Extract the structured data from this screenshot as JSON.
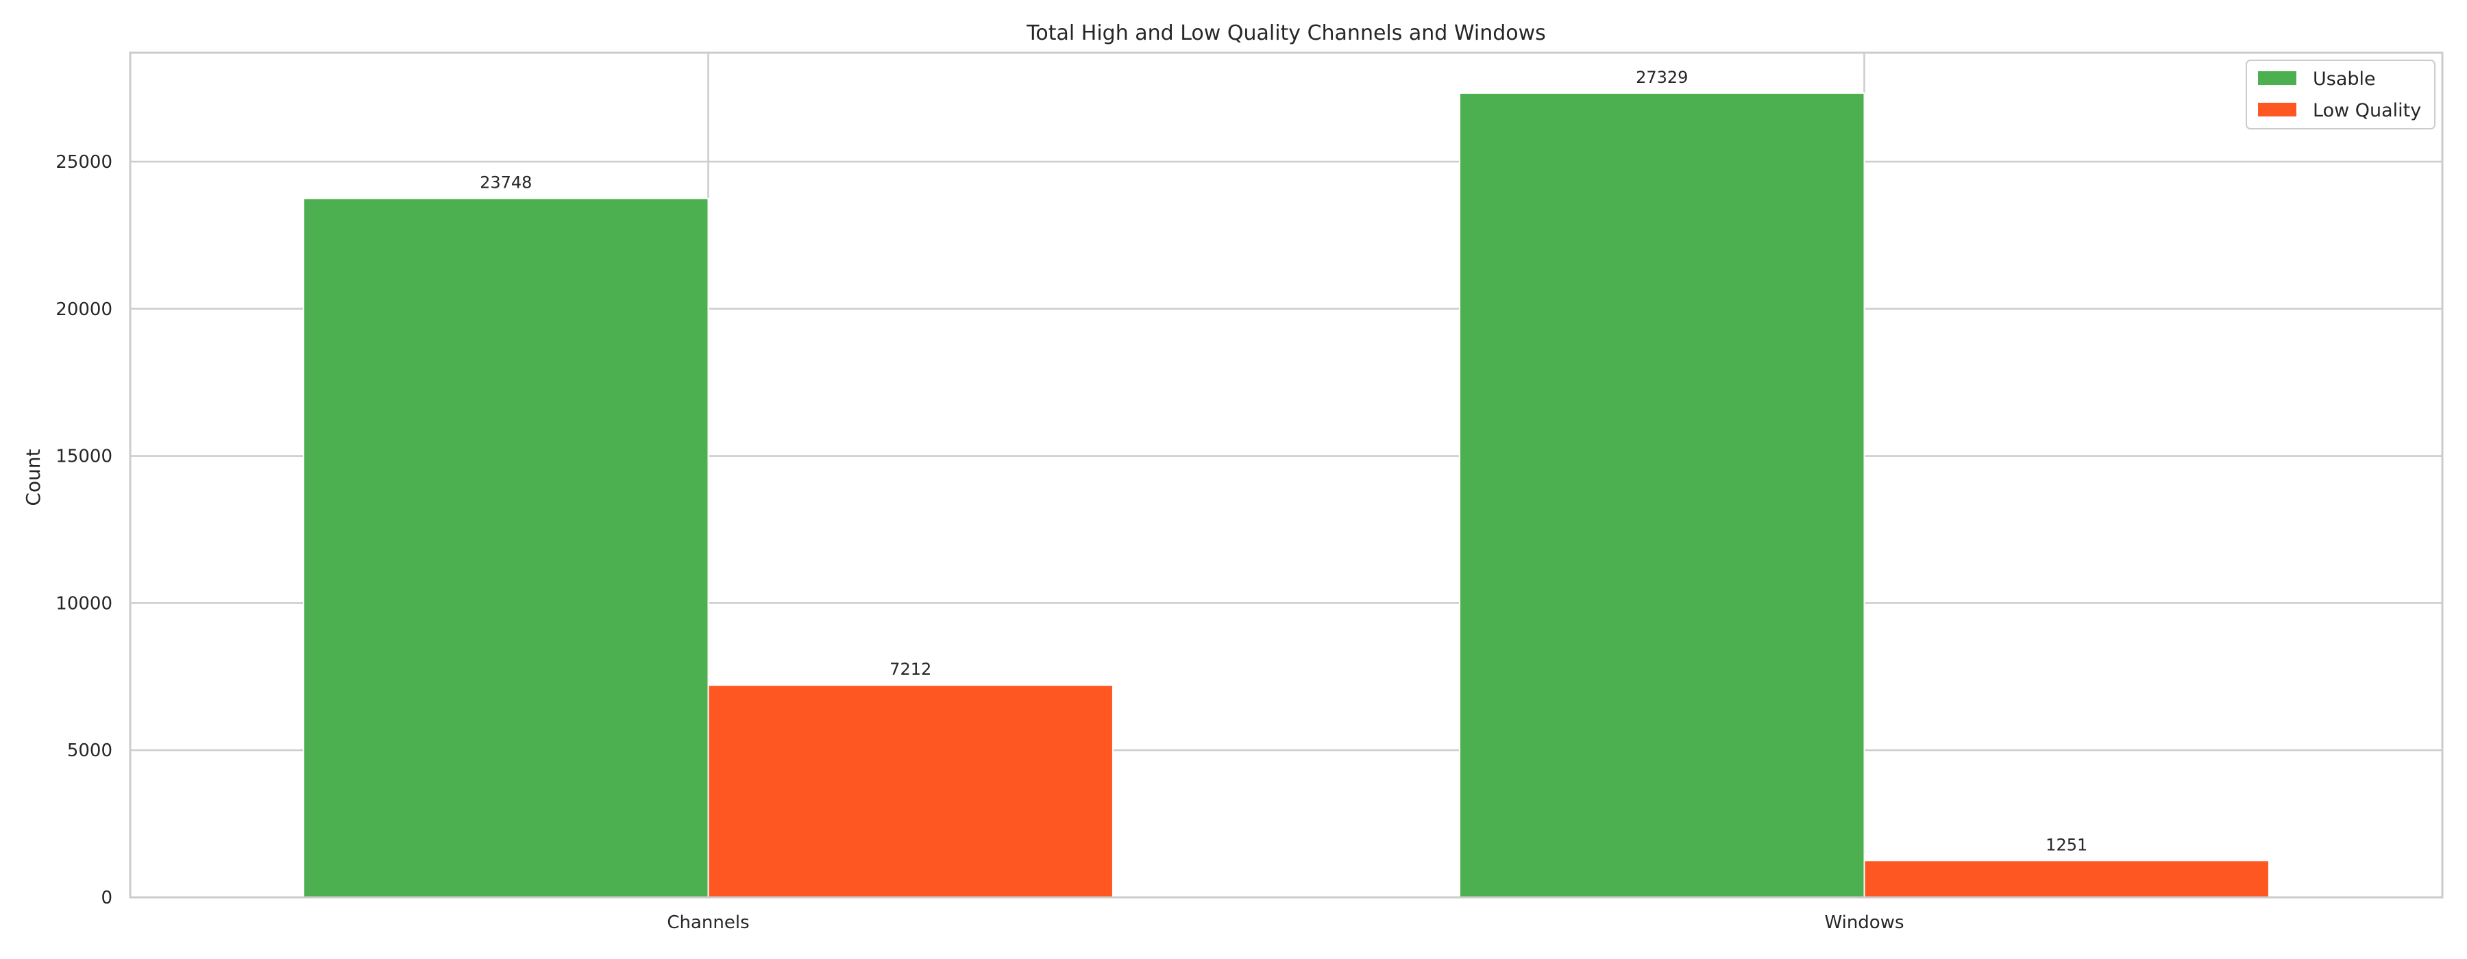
{
  "chart_data": {
    "type": "bar",
    "title": "Total High and Low Quality Channels and Windows",
    "xlabel": "",
    "ylabel": "Count",
    "categories": [
      "Channels",
      "Windows"
    ],
    "series": [
      {
        "name": "Usable",
        "values": [
          23748,
          27329
        ],
        "color": "#4caf50"
      },
      {
        "name": "Low Quality",
        "values": [
          7212,
          1251
        ],
        "color": "#ff5722"
      }
    ],
    "ylim": [
      0,
      28700
    ],
    "yticks": [
      0,
      5000,
      10000,
      15000,
      20000,
      25000
    ],
    "grid": true,
    "legend_position": "top-right",
    "colors": {
      "grid": "#cccccc",
      "frame": "#cccccc",
      "text": "#262626"
    }
  }
}
